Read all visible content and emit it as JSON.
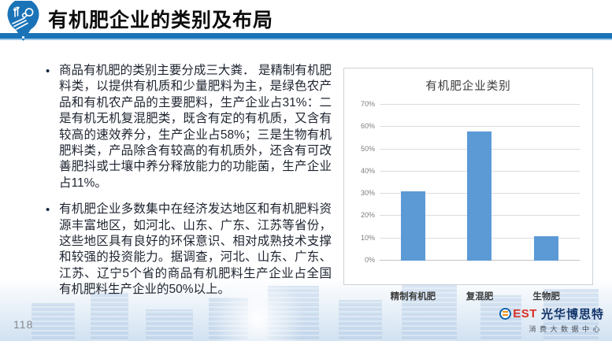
{
  "header": {
    "title": "有机肥企业的类别及布局"
  },
  "bullets": [
    "商品有机肥的类别主要分成三大粪． 是精制有机肥料类，以提供有机质和少量肥料为主，是绿色农产品和有机农产品的主要肥料，生产企业占31%：二是有机无机复混肥类，既含有定的有机质，又含有较高的速效养分，生产企业占58%；三是生物有机肥料类，产品除含有较高的有机质外，还含有可改善肥抖或士壤中养分释放能力的功能菌，生产企业占11%。",
    "有机肥企业多数集中在经济发达地区和有机肥料资源丰富地区，如河北、山东、广东、江苏等省份，这些地区具有良好的环保意识、相对成熟技术支撑和较强的投资能力。据调查，河北、山东、广东、江苏、辽宁5个省的商品有机肥料生产企业占全国有机肥料生产企业的50%以上。"
  ],
  "chart_data": {
    "type": "bar",
    "title": "有机肥企业类别",
    "categories": [
      "精制有机肥",
      "复混肥",
      "生物肥"
    ],
    "values": [
      31,
      58,
      11
    ],
    "unit": "%",
    "xlabel": "",
    "ylabel": "",
    "ylim": [
      0,
      70
    ],
    "ytick_step": 10,
    "ytick_labels": [
      "0%",
      "10%",
      "20%",
      "30%",
      "40%",
      "50%",
      "60%",
      "70%"
    ],
    "grid": true,
    "legend": false,
    "bar_color": "#5b9ad5"
  },
  "footer": {
    "page_number": "118",
    "logo": {
      "est": "EST",
      "name": "光华博思特",
      "subtitle": "消费大数据中心"
    }
  },
  "colors": {
    "accent": "#1a73b7",
    "bar_fill": "#5b9ad5"
  }
}
